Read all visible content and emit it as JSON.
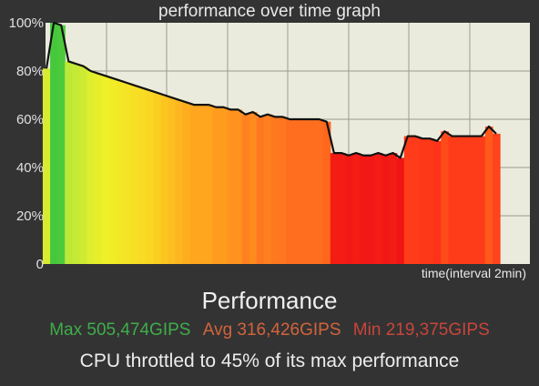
{
  "chart_data": {
    "type": "area",
    "title": "performance over time graph",
    "xlabel": "time(interval 2min)",
    "ylabel": "",
    "ylim": [
      0,
      100
    ],
    "yticks": [
      "0",
      "20%",
      "40%",
      "60%",
      "80%",
      "100%"
    ],
    "grid": true,
    "series": [
      {
        "values": [
          81,
          100,
          99,
          84,
          83,
          82,
          80,
          79,
          78,
          77,
          76,
          75,
          74,
          73,
          72,
          71,
          70,
          69,
          68,
          67,
          66,
          66,
          66,
          65,
          65,
          64,
          64,
          62,
          63,
          61,
          62,
          61,
          61,
          60,
          60,
          60,
          60,
          60,
          59,
          46,
          46,
          45,
          46,
          45,
          45,
          46,
          45,
          46,
          44,
          53,
          53,
          52,
          52,
          51,
          55,
          53,
          53,
          53,
          53,
          53,
          57,
          54
        ]
      }
    ]
  },
  "title": "performance over time graph",
  "performance_heading": "Performance",
  "stats": {
    "max": "Max 505,474GIPS",
    "avg": "Avg 316,426GIPS",
    "min": "Min 219,375GIPS"
  },
  "throttle_text": "CPU throttled to 45% of its max performance",
  "colors": {
    "background": "#333333",
    "plot_bg": "#ebebdd",
    "grid": "#9a9a8e",
    "line": "#111111",
    "max": "#3fae49",
    "avg": "#d2643c",
    "min": "#c8453a"
  }
}
